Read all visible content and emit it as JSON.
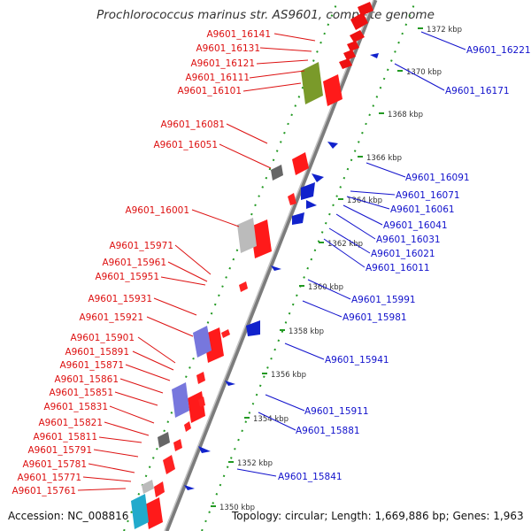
{
  "title": "Prochlorococcus marinus str. AS9601, complete genome",
  "accession": "Accession: NC_008816",
  "summary": "Topology: circular; Length: 1,669,886 bp; Genes: 1,963",
  "kbp_ticks": [
    "1372 kbp",
    "1370 kbp",
    "1368 kbp",
    "1366 kbp",
    "1364 kbp",
    "1362 kbp",
    "1360 kbp",
    "1358 kbp",
    "1356 kbp",
    "1354 kbp",
    "1352 kbp",
    "1350 kbp"
  ],
  "forward_labels": [
    "A9601_16141",
    "A9601_16131",
    "A9601_16121",
    "A9601_16111",
    "A9601_16101",
    "A9601_16081",
    "A9601_16051",
    "A9601_16001",
    "A9601_15971",
    "A9601_15961",
    "A9601_15951",
    "A9601_15931",
    "A9601_15921",
    "A9601_15901",
    "A9601_15891",
    "A9601_15871",
    "A9601_15861",
    "A9601_15851",
    "A9601_15831",
    "A9601_15821",
    "A9601_15811",
    "A9601_15791",
    "A9601_15781",
    "A9601_15771",
    "A9601_15761"
  ],
  "reverse_labels": [
    "A9601_16221",
    "A9601_16171",
    "A9601_16091",
    "A9601_16071",
    "A9601_16061",
    "A9601_16041",
    "A9601_16031",
    "A9601_16021",
    "A9601_16011",
    "A9601_15991",
    "A9601_15981",
    "A9601_15941",
    "A9601_15911",
    "A9601_15881",
    "A9601_15841"
  ],
  "colors": {
    "forward": "#dd1111",
    "reverse": "#1111cc",
    "backbone": "#888888",
    "dots": "#229922"
  }
}
